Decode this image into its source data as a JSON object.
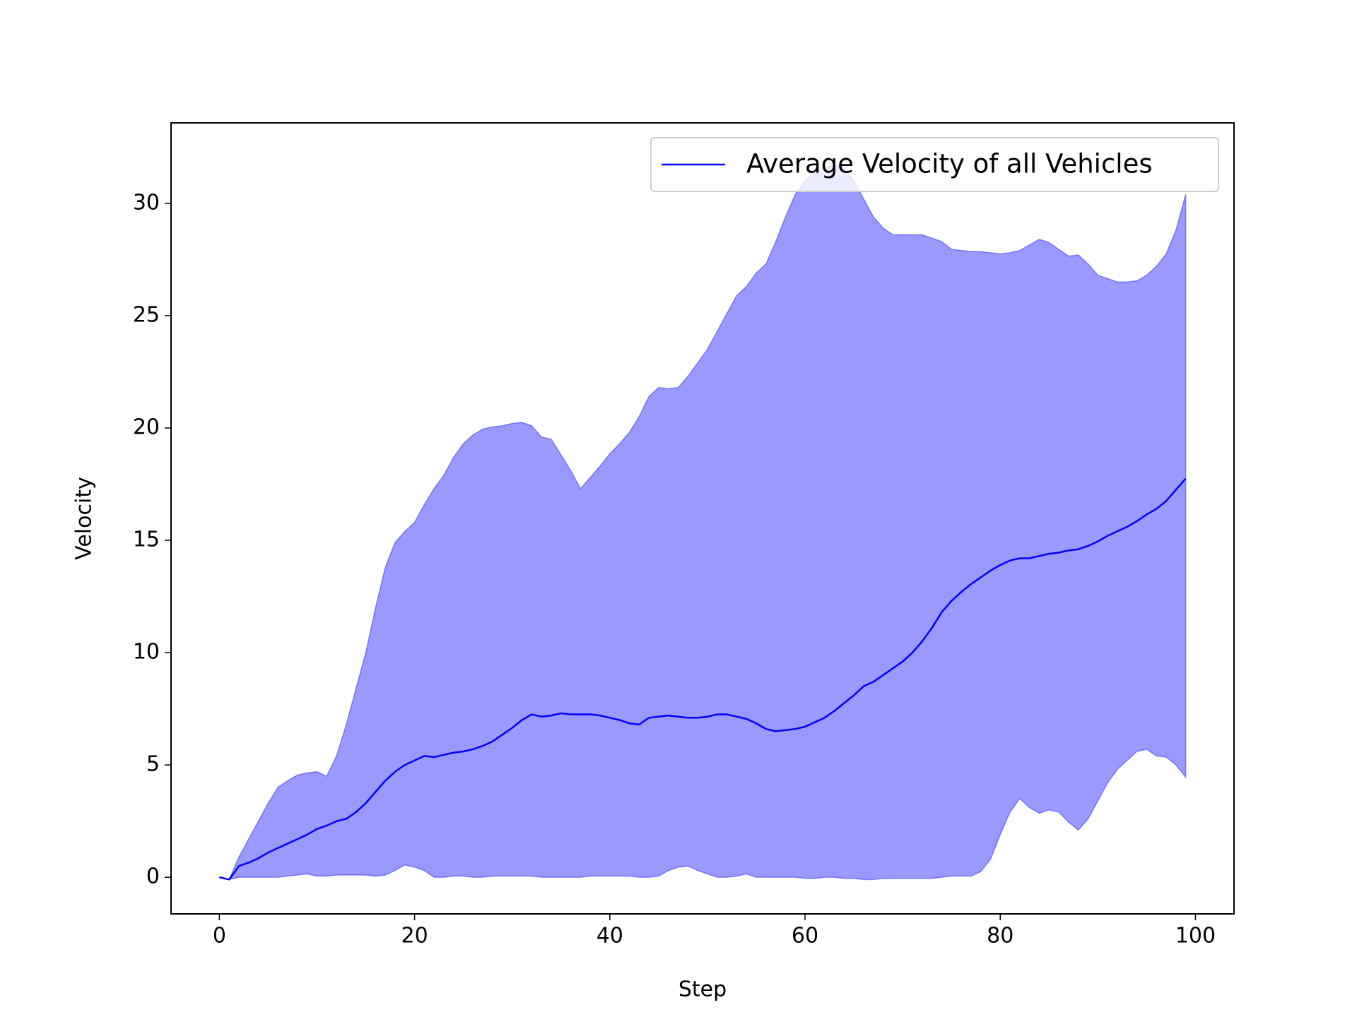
{
  "chart_data": {
    "type": "line",
    "xlabel": "Step",
    "ylabel": "Velocity",
    "x": [
      0,
      1,
      2,
      3,
      4,
      5,
      6,
      7,
      8,
      9,
      10,
      11,
      12,
      13,
      14,
      15,
      16,
      17,
      18,
      19,
      20,
      21,
      22,
      23,
      24,
      25,
      26,
      27,
      28,
      29,
      30,
      31,
      32,
      33,
      34,
      35,
      36,
      37,
      38,
      39,
      40,
      41,
      42,
      43,
      44,
      45,
      46,
      47,
      48,
      49,
      50,
      51,
      52,
      53,
      54,
      55,
      56,
      57,
      58,
      59,
      60,
      61,
      62,
      63,
      64,
      65,
      66,
      67,
      68,
      69,
      70,
      71,
      72,
      73,
      74,
      75,
      76,
      77,
      78,
      79,
      80,
      81,
      82,
      83,
      84,
      85,
      86,
      87,
      88,
      89,
      90,
      91,
      92,
      93,
      94,
      95,
      96,
      97,
      98,
      99
    ],
    "series": [
      {
        "name": "Average Velocity of all Vehicles",
        "color": "#0000ff",
        "values": [
          0,
          -0.1,
          0.5,
          0.65,
          0.85,
          1.1,
          1.3,
          1.5,
          1.7,
          1.9,
          2.15,
          2.3,
          2.5,
          2.6,
          2.9,
          3.3,
          3.8,
          4.3,
          4.7,
          5.0,
          5.2,
          5.4,
          5.35,
          5.45,
          5.55,
          5.6,
          5.7,
          5.85,
          6.05,
          6.35,
          6.65,
          7.0,
          7.25,
          7.15,
          7.2,
          7.3,
          7.25,
          7.25,
          7.25,
          7.2,
          7.1,
          7.0,
          6.85,
          6.8,
          7.1,
          7.15,
          7.2,
          7.15,
          7.1,
          7.1,
          7.15,
          7.25,
          7.25,
          7.15,
          7.05,
          6.85,
          6.6,
          6.5,
          6.55,
          6.6,
          6.7,
          6.9,
          7.1,
          7.4,
          7.75,
          8.1,
          8.5,
          8.7,
          9.0,
          9.3,
          9.6,
          10.0,
          10.5,
          11.1,
          11.8,
          12.3,
          12.7,
          13.05,
          13.35,
          13.65,
          13.9,
          14.1,
          14.2,
          14.2,
          14.3,
          14.4,
          14.45,
          14.55,
          14.6,
          14.75,
          14.95,
          15.2,
          15.4,
          15.6,
          15.85,
          16.15,
          16.4,
          16.75,
          17.25,
          17.75
        ]
      }
    ],
    "band": {
      "color": "#0000ff",
      "alpha": 0.4,
      "upper": [
        0,
        -0.1,
        0.9,
        1.7,
        2.5,
        3.3,
        4.0,
        4.3,
        4.55,
        4.65,
        4.7,
        4.5,
        5.4,
        6.8,
        8.4,
        10.0,
        12.0,
        13.8,
        14.9,
        15.4,
        15.8,
        16.6,
        17.3,
        17.9,
        18.7,
        19.3,
        19.7,
        19.95,
        20.05,
        20.1,
        20.2,
        20.25,
        20.1,
        19.6,
        19.5,
        18.8,
        18.1,
        17.3,
        17.8,
        18.3,
        18.85,
        19.3,
        19.8,
        20.5,
        21.4,
        21.8,
        21.75,
        21.8,
        22.3,
        22.9,
        23.5,
        24.3,
        25.1,
        25.9,
        26.3,
        26.9,
        27.3,
        28.3,
        29.4,
        30.4,
        31.0,
        31.4,
        31.6,
        31.7,
        31.6,
        31.0,
        30.2,
        29.4,
        28.9,
        28.6,
        28.6,
        28.6,
        28.6,
        28.45,
        28.3,
        27.95,
        27.9,
        27.85,
        27.85,
        27.8,
        27.75,
        27.8,
        27.9,
        28.15,
        28.4,
        28.25,
        27.95,
        27.65,
        27.7,
        27.3,
        26.8,
        26.65,
        26.5,
        26.5,
        26.55,
        26.8,
        27.2,
        27.75,
        28.8,
        30.4
      ],
      "lower": [
        0,
        -0.1,
        0,
        0,
        0,
        0,
        0,
        0.05,
        0.1,
        0.15,
        0.05,
        0.05,
        0.1,
        0.1,
        0.1,
        0.1,
        0.05,
        0.1,
        0.3,
        0.55,
        0.45,
        0.3,
        0,
        0,
        0.05,
        0.05,
        0,
        0,
        0.05,
        0.05,
        0.05,
        0.05,
        0.05,
        0,
        0,
        0,
        0,
        0,
        0.05,
        0.05,
        0.05,
        0.05,
        0.05,
        0,
        0,
        0.05,
        0.3,
        0.45,
        0.5,
        0.3,
        0.15,
        0,
        0,
        0.05,
        0.15,
        0,
        0,
        0,
        0,
        0,
        -0.05,
        -0.05,
        0,
        0,
        -0.05,
        -0.05,
        -0.1,
        -0.1,
        -0.05,
        -0.05,
        -0.05,
        -0.05,
        -0.05,
        -0.05,
        0,
        0.05,
        0.05,
        0.05,
        0.25,
        0.8,
        1.9,
        2.9,
        3.5,
        3.1,
        2.85,
        3.0,
        2.9,
        2.45,
        2.1,
        2.6,
        3.4,
        4.2,
        4.8,
        5.2,
        5.6,
        5.7,
        5.4,
        5.35,
        5.0,
        4.45
      ]
    },
    "xlim": [
      -4.95,
      103.95
    ],
    "ylim": [
      -1.63,
      33.58
    ],
    "xticks": [
      0,
      20,
      40,
      60,
      80,
      100
    ],
    "yticks": [
      0,
      5,
      10,
      15,
      20,
      25,
      30
    ],
    "legend": "upper right"
  }
}
